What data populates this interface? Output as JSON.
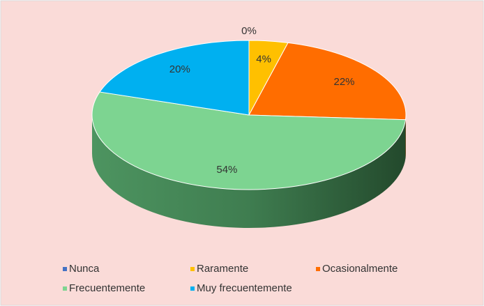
{
  "chart_data": {
    "type": "pie",
    "categories": [
      "Nunca",
      "Raramente",
      "Ocasionalmente",
      "Frecuentemente",
      "Muy frecuentemente"
    ],
    "values": [
      0,
      4,
      22,
      54,
      20
    ],
    "value_labels": [
      "0%",
      "4%",
      "22%",
      "54%",
      "20%"
    ],
    "colors": [
      "#4472c4",
      "#ffc000",
      "#ff6d00",
      "#7dd491",
      "#00b0f0"
    ],
    "legend": "bottom"
  }
}
